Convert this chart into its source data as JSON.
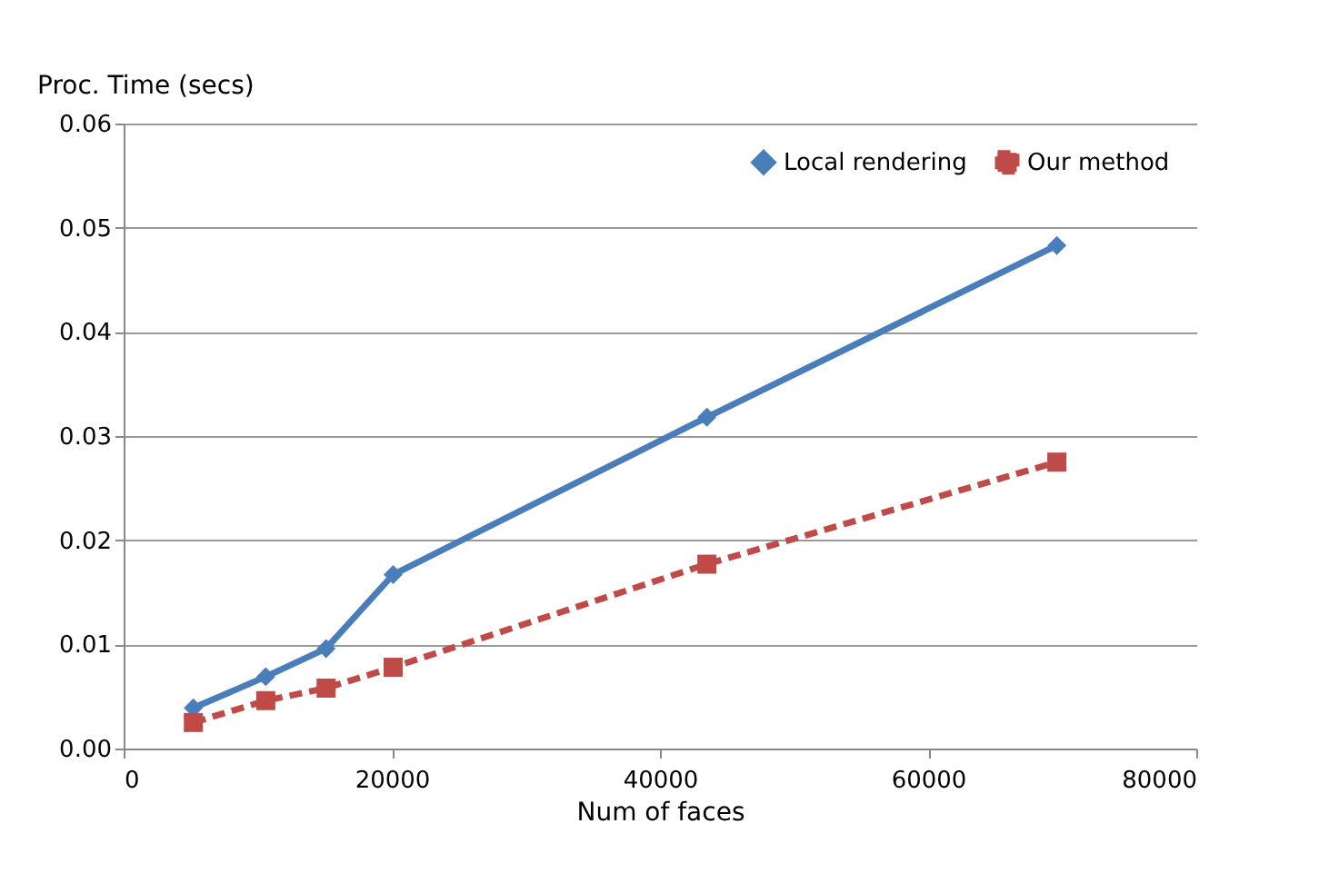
{
  "chart_data": {
    "type": "line",
    "xlabel": "Num of faces",
    "ylabel": "Proc. Time (secs)",
    "xlim": [
      0,
      80000
    ],
    "xticks": [
      0,
      20000,
      40000,
      60000,
      80000
    ],
    "ylim": [
      0,
      0.06
    ],
    "yticks": [
      {
        "value": 0,
        "label": "0.00"
      },
      {
        "value": 0.01,
        "label": "0.01"
      },
      {
        "value": 0.02,
        "label": "0.02"
      },
      {
        "value": 0.03,
        "label": "0.03"
      },
      {
        "value": 0.04,
        "label": "0.04"
      },
      {
        "value": 0.05,
        "label": "0.05"
      },
      {
        "value": 0.06,
        "label": "0.06"
      }
    ],
    "grid": "y",
    "legend": "top right",
    "x": [
      5200,
      10600,
      15100,
      20100,
      43500,
      69600
    ],
    "series": [
      {
        "name": "Local rendering",
        "color": "#4a7ebb",
        "marker": "diamond",
        "line_style": "solid",
        "values": [
          0.0039,
          0.0069,
          0.0096,
          0.0167,
          0.0318,
          0.0483
        ]
      },
      {
        "name": "Our method",
        "color": "#be4b48",
        "marker": "square",
        "line_style": "dashed",
        "values": [
          0.0025,
          0.0046,
          0.0058,
          0.0078,
          0.0177,
          0.0275
        ]
      }
    ]
  }
}
